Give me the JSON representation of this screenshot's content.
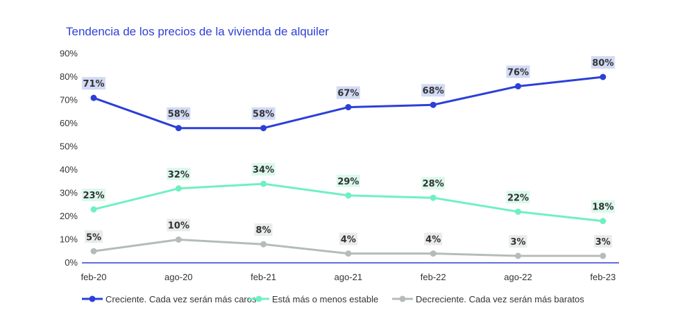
{
  "chart_data": {
    "type": "line",
    "title": "Tendencia de los precios de la vivienda de alquiler",
    "categories": [
      "feb-20",
      "ago-20",
      "feb-21",
      "ago-21",
      "feb-22",
      "ago-22",
      "feb-23"
    ],
    "ylim": [
      0,
      90
    ],
    "yticks": [
      "0%",
      "10%",
      "20%",
      "30%",
      "40%",
      "50%",
      "60%",
      "70%",
      "80%",
      "90%"
    ],
    "grid": false,
    "legend_position": "bottom",
    "series": [
      {
        "name": "Creciente. Cada vez serán más caros",
        "color": "#2B3FD9",
        "label_bg": "#D2DAF5",
        "values": [
          71,
          58,
          58,
          67,
          68,
          76,
          80
        ],
        "labels": [
          "71%",
          "58%",
          "58%",
          "67%",
          "68%",
          "76%",
          "80%"
        ]
      },
      {
        "name": "Está más o menos estable",
        "color": "#6FF0C2",
        "label_bg": "#DBF8EC",
        "values": [
          23,
          32,
          34,
          29,
          28,
          22,
          18
        ],
        "labels": [
          "23%",
          "32%",
          "34%",
          "29%",
          "28%",
          "22%",
          "18%"
        ]
      },
      {
        "name": "Decreciente. Cada vez serán más baratos",
        "color": "#B4BCBA",
        "label_bg": "#E9ECEB",
        "values": [
          5,
          10,
          8,
          4,
          4,
          3,
          3
        ],
        "labels": [
          "5%",
          "10%",
          "8%",
          "4%",
          "4%",
          "3%",
          "3%"
        ]
      }
    ],
    "colors": {
      "title": "#2B3FD9",
      "axis": "#2B3FD9"
    }
  }
}
